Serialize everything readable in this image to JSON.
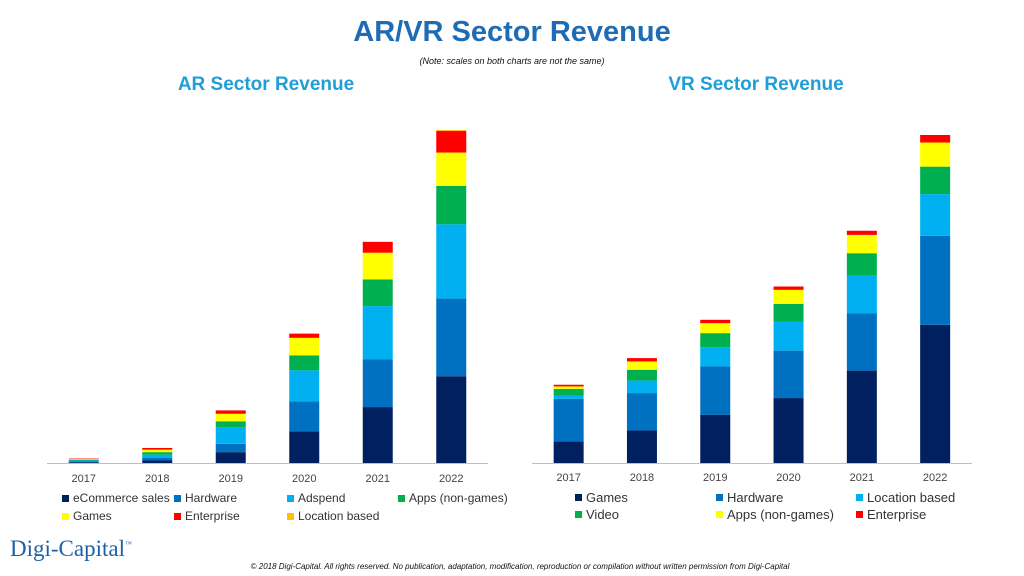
{
  "title": "AR/VR Sector Revenue",
  "note": "(Note: scales on both charts are not the same)",
  "footer": "© 2018 Digi-Capital. All rights reserved. No publication, adaptation, modification, reproduction or compilation without written permission from Digi-Capital",
  "logo": {
    "text": "Digi-Capital",
    "mark": "™"
  },
  "chart_data": [
    {
      "type": "bar",
      "stacked": true,
      "title": "AR Sector Revenue",
      "categories": [
        "2017",
        "2018",
        "2019",
        "2020",
        "2021",
        "2022"
      ],
      "legend_position": "bottom",
      "series": [
        {
          "name": "eCommerce sales",
          "color": "#002060",
          "values": [
            1,
            3,
            13,
            38,
            67,
            104
          ]
        },
        {
          "name": "Hardware",
          "color": "#0070C0",
          "values": [
            1,
            3,
            10,
            36,
            57,
            93
          ]
        },
        {
          "name": "Adspend",
          "color": "#00B0F0",
          "values": [
            1,
            4,
            20,
            37,
            64,
            89
          ]
        },
        {
          "name": "Apps (non-games)",
          "color": "#00B050",
          "values": [
            1,
            3,
            7,
            18,
            32,
            46
          ]
        },
        {
          "name": "Games",
          "color": "#FFFF00",
          "values": [
            1,
            3,
            9,
            21,
            32,
            40
          ]
        },
        {
          "name": "Enterprise",
          "color": "#FF0000",
          "values": [
            0.5,
            2,
            4,
            5,
            13,
            26
          ]
        },
        {
          "name": "Location based",
          "color": "#FFC000",
          "values": [
            0,
            0,
            0,
            0,
            0,
            1
          ]
        }
      ]
    },
    {
      "type": "bar",
      "stacked": true,
      "title": "VR Sector Revenue",
      "categories": [
        "2017",
        "2018",
        "2019",
        "2020",
        "2021",
        "2022"
      ],
      "legend_position": "bottom",
      "series": [
        {
          "name": "Games",
          "color": "#002060",
          "values": [
            26,
            39,
            58,
            78,
            111,
            166
          ]
        },
        {
          "name": "Hardware",
          "color": "#0070C0",
          "values": [
            51,
            45,
            58,
            57,
            69,
            107
          ]
        },
        {
          "name": "Location based",
          "color": "#00B0F0",
          "values": [
            4,
            15,
            23,
            35,
            45,
            50
          ]
        },
        {
          "name": "Video",
          "color": "#00B050",
          "values": [
            8,
            13,
            17,
            21,
            27,
            33
          ]
        },
        {
          "name": "Apps (non-games)",
          "color": "#FFFF00",
          "values": [
            3,
            10,
            12,
            17,
            22,
            29
          ]
        },
        {
          "name": "Enterprise",
          "color": "#FF0000",
          "values": [
            2,
            4,
            4,
            4,
            5,
            9
          ]
        }
      ]
    }
  ]
}
